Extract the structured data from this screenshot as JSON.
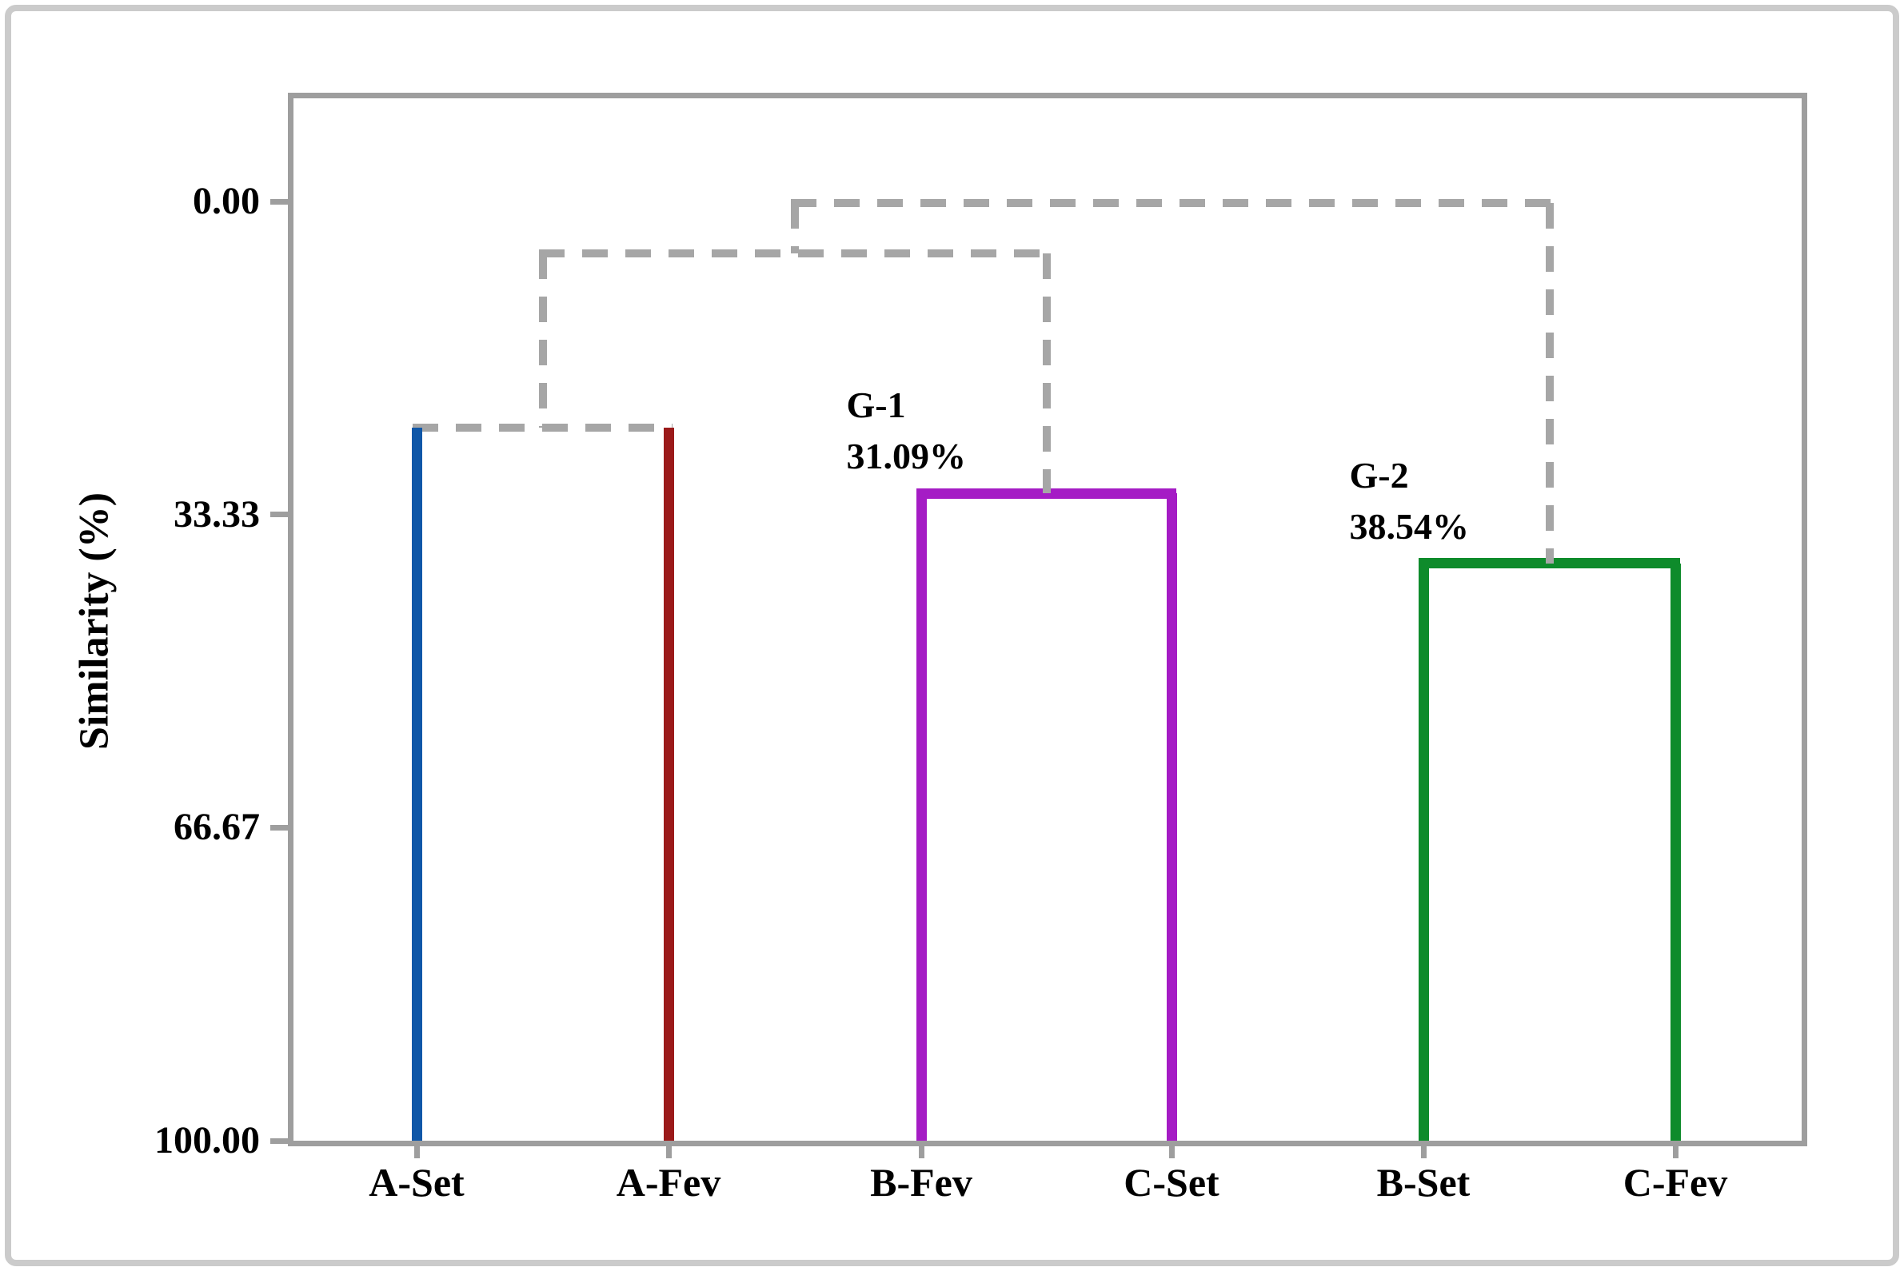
{
  "figure": {
    "background": "#ffffff",
    "outer_border_color": "#cbcbcb",
    "plot_border_color": "#9e9e9e"
  },
  "axis": {
    "title": "Similarity (%)",
    "tick_labels": [
      "0.00",
      "33.33",
      "66.67",
      "100.00"
    ],
    "tick_values": [
      0,
      33.33,
      66.67,
      100
    ]
  },
  "chart_data": {
    "type": "dendrogram",
    "ylabel": "Similarity (%)",
    "y_axis_inverted": true,
    "ylim": [
      0,
      100
    ],
    "yticks": [
      0,
      33.33,
      66.67,
      100
    ],
    "grid": false,
    "link_color_dashed": "#a6a6a6",
    "leaves": [
      "A-Set",
      "A-Fev",
      "B-Fev",
      "C-Set",
      "B-Set",
      "C-Fev"
    ],
    "leaf_colors": {
      "A-Set": "#0f57a8",
      "A-Fev": "#9b1a1a",
      "B-Fev": "#a51cc5",
      "C-Set": "#a51cc5",
      "B-Set": "#0e8b2b",
      "C-Fev": "#0e8b2b"
    },
    "merges": [
      {
        "id": "A-pair",
        "left": "A-Set",
        "right": "A-Fev",
        "similarity_pct": 24.1,
        "link": "dashed"
      },
      {
        "id": "G-1",
        "left": "B-Fev",
        "right": "C-Set",
        "similarity_pct": 31.09,
        "link": "solid",
        "color": "#a51cc5",
        "label": "G-1",
        "label_value": "31.09%"
      },
      {
        "id": "G-2",
        "left": "B-Set",
        "right": "C-Fev",
        "similarity_pct": 38.54,
        "link": "solid",
        "color": "#0e8b2b",
        "label": "G-2",
        "label_value": "38.54%"
      },
      {
        "id": "mid",
        "left": "A-pair",
        "right": "G-1",
        "similarity_pct": 5.5,
        "link": "dashed"
      },
      {
        "id": "root",
        "left": "mid",
        "right": "G-2",
        "similarity_pct": 0.2,
        "link": "dashed"
      }
    ],
    "annotations": [
      {
        "group": "G-1",
        "value": "31.09%"
      },
      {
        "group": "G-2",
        "value": "38.54%"
      }
    ]
  }
}
